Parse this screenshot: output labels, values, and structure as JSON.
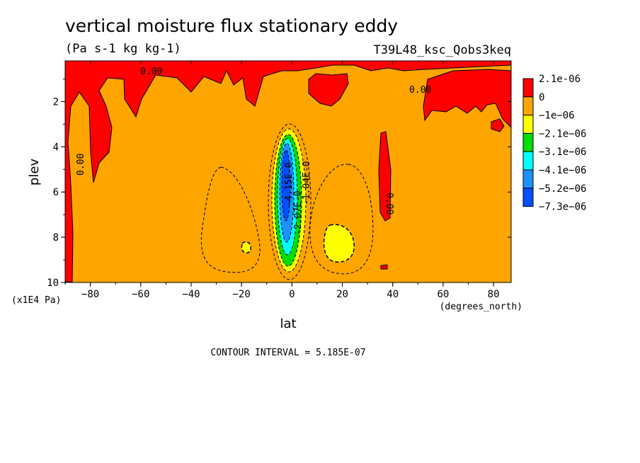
{
  "chart_data": {
    "type": "heatmap",
    "title": "vertical moisture flux stationary eddy",
    "units": "(Pa s-1 kg kg-1)",
    "experiment": "T39L48_ksc_Qobs3keq",
    "xlabel": "lat",
    "xunits": "(degrees_north)",
    "ylabel": "plev",
    "yunits": "(x1E4 Pa)",
    "xlim": [
      -90,
      87
    ],
    "ylim": [
      10,
      0.2
    ],
    "x_ticks": [
      -80,
      -60,
      -40,
      -20,
      0,
      20,
      40,
      60,
      80
    ],
    "y_ticks": [
      2,
      4,
      6,
      8,
      10
    ],
    "contour_interval": "CONTOUR INTERVAL = 5.185E-07",
    "legend": [
      {
        "label": "2.1e-06",
        "color": "#ff0000"
      },
      {
        "label": "0",
        "color": "#ffa500"
      },
      {
        "label": "−1e−06",
        "color": "#ffff00"
      },
      {
        "label": "−2.1e−06",
        "color": "#00dd00"
      },
      {
        "label": "−3.1e−06",
        "color": "#00ffff"
      },
      {
        "label": "−4.1e−06",
        "color": "#1e90ff"
      },
      {
        "label": "−5.2e−06",
        "color": "#0050ff"
      },
      {
        "label": "−7.3e−06",
        "color": null
      }
    ],
    "contour_labels": [
      {
        "text": "0.00",
        "lat": -57,
        "plev": 0.6
      },
      {
        "text": "0.00",
        "lat": 53,
        "plev": 1.4
      },
      {
        "text": "0.00",
        "lat": -83,
        "plev": 5.0
      },
      {
        "text": "0.00",
        "lat": 40,
        "plev": 5.9
      },
      {
        "text": "-4.15E-0",
        "lat": 2,
        "plev": 4.8
      },
      {
        "text": "-2.07E-0",
        "lat": 5,
        "plev": 6.8
      },
      {
        "text": "-1.04E-0",
        "lat": 8,
        "plev": 5.8
      }
    ]
  }
}
